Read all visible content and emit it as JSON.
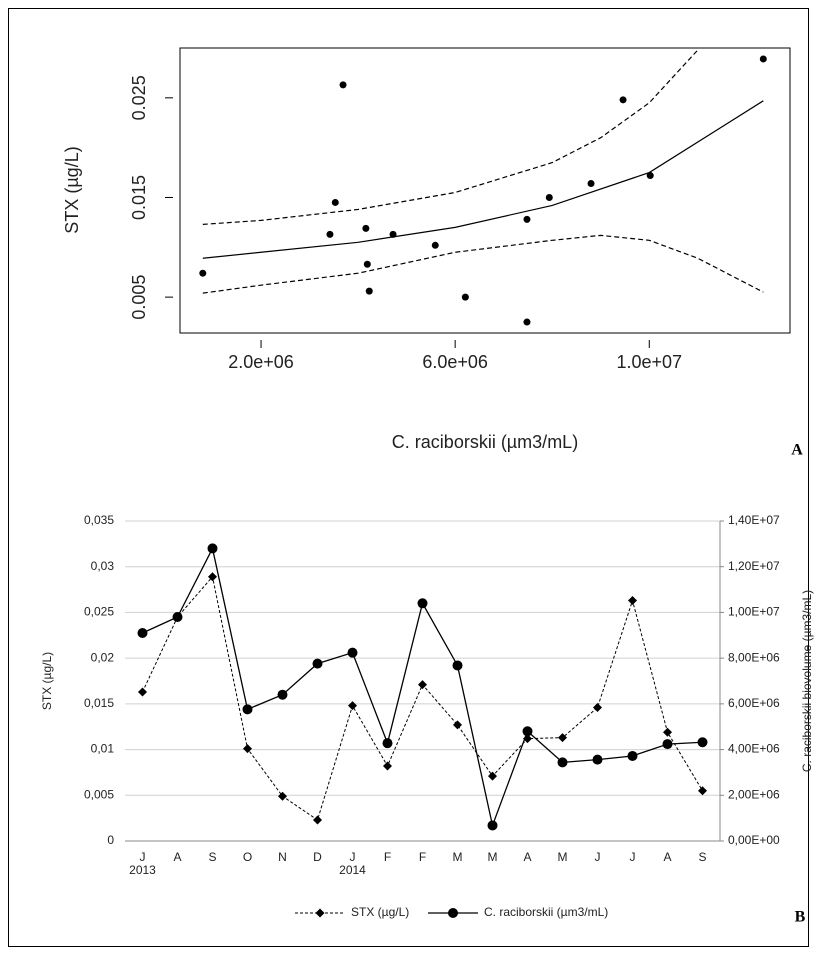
{
  "chart_data": [
    {
      "type": "scatter",
      "panel_label": "A",
      "ylabel": "STX (µg/L)",
      "xlabel": "C. raciborskii (µm3/mL)",
      "xlim": [
        330000,
        12900000
      ],
      "ylim": [
        0.0014,
        0.03
      ],
      "xticks": [
        {
          "value": 2000000,
          "label": "2.0e+06"
        },
        {
          "value": 6000000,
          "label": "6.0e+06"
        },
        {
          "value": 10000000,
          "label": "1.0e+07"
        }
      ],
      "yticks": [
        0.005,
        0.015,
        0.025
      ],
      "color": "#000000",
      "x": [
        800000,
        3690000,
        3530000,
        3420000,
        4160000,
        4190000,
        4230000,
        4720000,
        5590000,
        6210000,
        7480000,
        7480000,
        7940000,
        8800000,
        9460000,
        10020000,
        12350000
      ],
      "values": [
        0.0074,
        0.0263,
        0.0145,
        0.0113,
        0.0119,
        0.0083,
        0.0056,
        0.0113,
        0.0102,
        0.005,
        0.0128,
        0.0025,
        0.015,
        0.0164,
        0.0248,
        0.0172,
        0.0289
      ],
      "lines": [
        {
          "dash": false,
          "x": [
            800000,
            2000000,
            4000000,
            6000000,
            8000000,
            10000000,
            12350000
          ],
          "values": [
            0.0089,
            0.0095,
            0.0105,
            0.012,
            0.0142,
            0.0175,
            0.0247
          ]
        },
        {
          "dash": true,
          "x": [
            800000,
            2000000,
            4000000,
            6000000,
            8000000,
            9000000,
            10000000,
            11000000
          ],
          "values": [
            0.0123,
            0.0127,
            0.0138,
            0.0155,
            0.0185,
            0.021,
            0.0245,
            0.0298
          ]
        },
        {
          "dash": true,
          "x": [
            800000,
            2000000,
            4000000,
            6000000,
            8000000,
            9000000,
            10000000,
            11000000,
            12350000
          ],
          "values": [
            0.0054,
            0.0062,
            0.0074,
            0.0095,
            0.0107,
            0.0112,
            0.0107,
            0.0089,
            0.0055
          ]
        }
      ]
    },
    {
      "type": "line",
      "panel_label": "B",
      "ylabel": "STX (µg/L)",
      "y2label": "C. raciborskii biovolume (µm3/mL)",
      "categories": [
        "J",
        "A",
        "S",
        "O",
        "N",
        "D",
        "J",
        "F",
        "F",
        "M",
        "M",
        "A",
        "M",
        "J",
        "J",
        "A",
        "S"
      ],
      "category_years": [
        "2013",
        null,
        null,
        null,
        null,
        null,
        "2014",
        null,
        null,
        null,
        null,
        null,
        null,
        null,
        null,
        null,
        null
      ],
      "ylim": [
        0,
        0.035
      ],
      "yticks": [
        0,
        {
          "value": 0.005,
          "label": "0,005"
        },
        {
          "value": 0.01,
          "label": "0,01"
        },
        {
          "value": 0.015,
          "label": "0,015"
        },
        {
          "value": 0.02,
          "label": "0,02"
        },
        {
          "value": 0.025,
          "label": "0,025"
        },
        {
          "value": 0.03,
          "label": "0,03"
        },
        {
          "value": 0.035,
          "label": "0,035"
        }
      ],
      "y2lim": [
        0,
        14000000
      ],
      "y2ticks": [
        {
          "value": 0,
          "label": "0,00E+00"
        },
        {
          "value": 2000000,
          "label": "2,00E+06"
        },
        {
          "value": 4000000,
          "label": "4,00E+06"
        },
        {
          "value": 6000000,
          "label": "6,00E+06"
        },
        {
          "value": 8000000,
          "label": "8,00E+06"
        },
        {
          "value": 10000000,
          "label": "1,00E+07"
        },
        {
          "value": 12000000,
          "label": "1,20E+07"
        },
        {
          "value": 14000000,
          "label": "1,40E+07"
        }
      ],
      "grid": true,
      "legend": "bottom",
      "series": [
        {
          "name": "STX (µg/L)",
          "color": "#000000",
          "marker": "diamond",
          "dash": true,
          "values": [
            0.0163,
            0.0245,
            0.0289,
            0.0101,
            0.0049,
            0.0023,
            0.0148,
            0.0082,
            0.0171,
            0.0127,
            0.0071,
            0.0112,
            0.0113,
            0.0146,
            0.0263,
            0.0119,
            0.0055
          ]
        },
        {
          "name": "C. raciborskii (µm3/mL)",
          "color": "#000000",
          "marker": "circle",
          "dash": false,
          "axis": "y2",
          "values": [
            9100000,
            9800000,
            12800000,
            5760000,
            6400000,
            7760000,
            8240000,
            4280000,
            10400000,
            7680000,
            680000,
            4800000,
            3440000,
            3560000,
            3720000,
            4240000,
            4320000
          ]
        }
      ]
    }
  ]
}
